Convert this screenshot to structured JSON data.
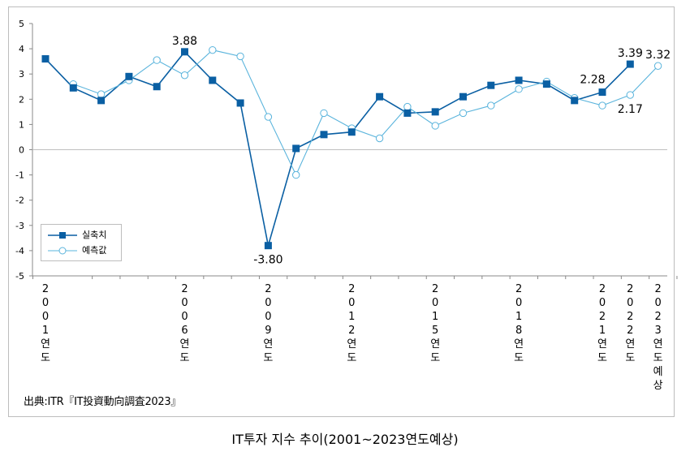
{
  "source": "出典:ITR『IT投資動向調査2023』",
  "caption": "IT투자 지수 추이(2001~2023연도예상)",
  "colors": {
    "actual": "#0a5fa3",
    "forecast": "#5ab4dc",
    "axis": "#888888",
    "grid_zero": "#bfbfbf"
  },
  "chart_data": {
    "type": "line",
    "ylim": [
      -5,
      5
    ],
    "y_ticks": [
      "5",
      "4",
      "3",
      "2",
      "1",
      "0",
      "-1",
      "-2",
      "-3",
      "-4",
      "-5"
    ],
    "x": [
      2001,
      2002,
      2003,
      2004,
      2005,
      2006,
      2007,
      2008,
      2009,
      2010,
      2011,
      2012,
      2013,
      2014,
      2015,
      2016,
      2017,
      2018,
      2019,
      2020,
      2021,
      2022,
      2023
    ],
    "x_tick_labels": [
      {
        "index": 0,
        "chars": [
          "2",
          "0",
          "0",
          "1",
          "연",
          "도"
        ]
      },
      {
        "index": 5,
        "chars": [
          "2",
          "0",
          "0",
          "6",
          "연",
          "도"
        ]
      },
      {
        "index": 8,
        "chars": [
          "2",
          "0",
          "0",
          "9",
          "연",
          "도"
        ]
      },
      {
        "index": 11,
        "chars": [
          "2",
          "0",
          "1",
          "2",
          "연",
          "도"
        ]
      },
      {
        "index": 14,
        "chars": [
          "2",
          "0",
          "1",
          "5",
          "연",
          "도"
        ]
      },
      {
        "index": 17,
        "chars": [
          "2",
          "0",
          "1",
          "8",
          "연",
          "도"
        ]
      },
      {
        "index": 20,
        "chars": [
          "2",
          "0",
          "2",
          "1",
          "연",
          "도"
        ]
      },
      {
        "index": 21,
        "chars": [
          "2",
          "0",
          "2",
          "2",
          "연",
          "도"
        ]
      },
      {
        "index": 22,
        "chars": [
          "2",
          "0",
          "2",
          "3",
          "연",
          "도",
          "예",
          "상"
        ]
      }
    ],
    "series": [
      {
        "name": "실축치",
        "marker": "square",
        "values": [
          3.6,
          2.45,
          1.95,
          2.9,
          2.5,
          3.88,
          2.75,
          1.85,
          -3.8,
          0.05,
          0.6,
          0.7,
          2.1,
          1.45,
          1.5,
          2.1,
          2.55,
          2.75,
          2.6,
          1.95,
          2.28,
          3.39,
          null
        ]
      },
      {
        "name": "예측값",
        "marker": "circle",
        "values": [
          null,
          2.6,
          2.2,
          2.75,
          3.55,
          2.95,
          3.95,
          3.7,
          1.3,
          -1.0,
          1.45,
          0.85,
          0.45,
          1.7,
          0.95,
          1.45,
          1.75,
          2.4,
          2.7,
          2.05,
          1.75,
          2.17,
          3.32
        ]
      }
    ],
    "annotations": [
      {
        "series": 0,
        "index": 5,
        "text": "3.88",
        "pos": "above"
      },
      {
        "series": 0,
        "index": 8,
        "text": "-3.80",
        "pos": "below"
      },
      {
        "series": 0,
        "index": 20,
        "text": "2.28",
        "pos": "above-left"
      },
      {
        "series": 0,
        "index": 21,
        "text": "3.39",
        "pos": "above"
      },
      {
        "series": 1,
        "index": 21,
        "text": "2.17",
        "pos": "below"
      },
      {
        "series": 1,
        "index": 22,
        "text": "3.32",
        "pos": "above"
      }
    ],
    "legend_position": "lower-left"
  }
}
